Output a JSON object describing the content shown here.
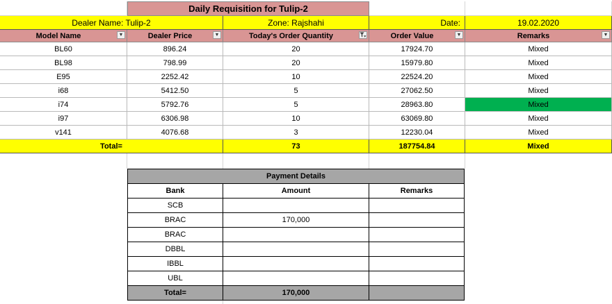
{
  "title": "Daily Requisition for Tulip-2",
  "info": {
    "dealer": "Dealer Name: Tulip-2",
    "zone": "Zone: Rajshahi",
    "date_label": "Date:",
    "date_value": "19.02.2020"
  },
  "headers": [
    "Model Name",
    "Dealer Price",
    "Today's Order Quantity",
    "Order Value",
    "Remarks"
  ],
  "rows": [
    {
      "model": "BL60",
      "price": "896.24",
      "qty": "20",
      "value": "17924.70",
      "remarks": "Mixed"
    },
    {
      "model": "BL98",
      "price": "798.99",
      "qty": "20",
      "value": "15979.80",
      "remarks": "Mixed"
    },
    {
      "model": "E95",
      "price": "2252.42",
      "qty": "10",
      "value": "22524.20",
      "remarks": "Mixed"
    },
    {
      "model": "i68",
      "price": "5412.50",
      "qty": "5",
      "value": "27062.50",
      "remarks": "Mixed"
    },
    {
      "model": "i74",
      "price": "5792.76",
      "qty": "5",
      "value": "28963.80",
      "remarks": "Mixed"
    },
    {
      "model": "i97",
      "price": "6306.98",
      "qty": "10",
      "value": "63069.80",
      "remarks": "Mixed"
    },
    {
      "model": "v141",
      "price": "4076.68",
      "qty": "3",
      "value": "12230.04",
      "remarks": "Mixed"
    }
  ],
  "totals": {
    "label": "Total=",
    "qty": "73",
    "value": "187754.84",
    "remarks": "Mixed"
  },
  "highlight_color": "#00b050",
  "payment": {
    "title": "Payment Details",
    "headers": [
      "Bank",
      "Amount",
      "Remarks"
    ],
    "rows": [
      {
        "bank": "SCB",
        "amount": "",
        "remarks": ""
      },
      {
        "bank": "BRAC",
        "amount": "170,000",
        "remarks": ""
      },
      {
        "bank": "BRAC",
        "amount": "",
        "remarks": ""
      },
      {
        "bank": "DBBL",
        "amount": "",
        "remarks": ""
      },
      {
        "bank": "IBBL",
        "amount": "",
        "remarks": ""
      },
      {
        "bank": "UBL",
        "amount": "",
        "remarks": ""
      }
    ],
    "total_label": "Total=",
    "total_amount": "170,000"
  }
}
